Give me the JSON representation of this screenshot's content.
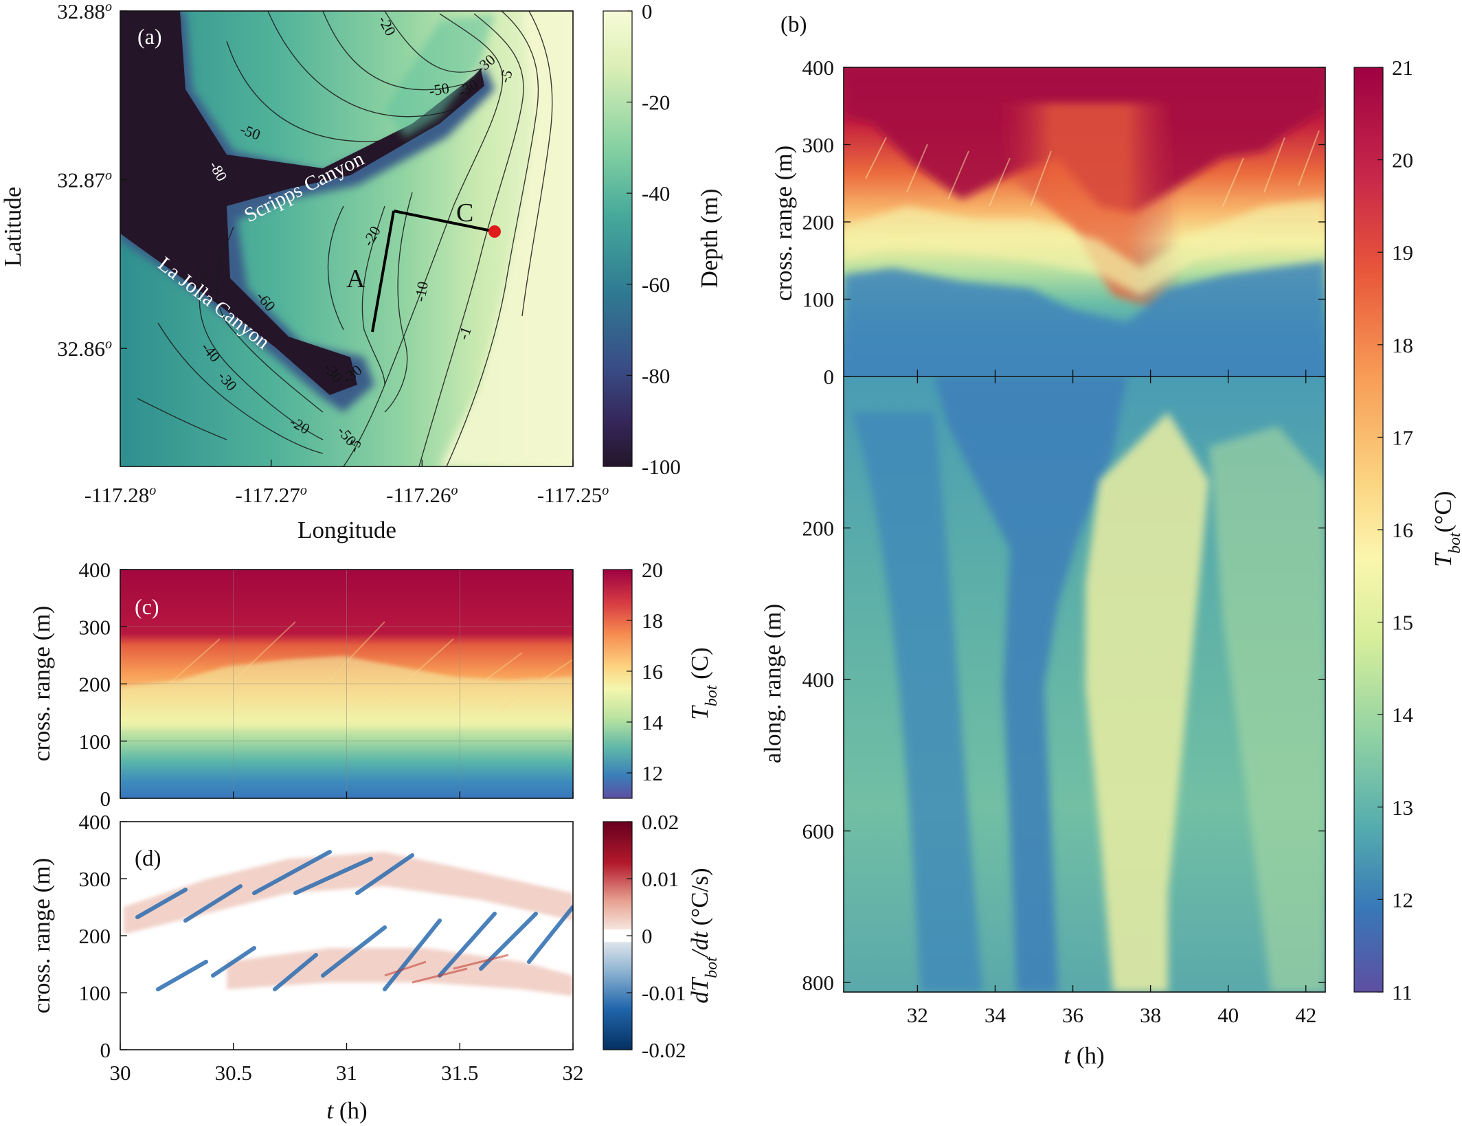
{
  "chart_data": [
    {
      "panel": "(a)",
      "type": "heatmap",
      "subtype": "bathymetry contour map",
      "xlabel": "Longitude",
      "ylabel": "Latitude",
      "xlim": [
        -117.28,
        -117.25
      ],
      "ylim": [
        32.853,
        32.88
      ],
      "x_ticks": [
        "-117.28",
        "-117.27",
        "-117.26",
        "-117.25"
      ],
      "y_ticks": [
        "32.86",
        "32.87",
        "32.88"
      ],
      "tick_superscript": "o",
      "colorbar": {
        "label": "Depth (m)",
        "range": [
          -100,
          0
        ],
        "ticks": [
          "0",
          "-20",
          "-40",
          "-60",
          "-80",
          "-100"
        ]
      },
      "contour_labels": [
        "-20",
        "-50",
        "-30",
        "-5",
        "-30",
        "-80",
        "-50",
        "-20",
        "-10",
        "-1",
        "-60",
        "-40",
        "-30",
        "-30",
        "-30",
        "-20",
        "-50",
        "-5"
      ],
      "annotations": [
        "Scripps Canyon",
        "La Jolla Canyon",
        "A",
        "C"
      ],
      "transects": {
        "A": [
          [
            -117.2623,
            32.8614
          ],
          [
            -117.2615,
            32.8678
          ]
        ],
        "C": [
          [
            -117.2615,
            32.8678
          ],
          [
            -117.2545,
            32.8666
          ]
        ]
      },
      "marker": {
        "color": "#e01b1b",
        "lon": -117.2545,
        "lat": 32.8666
      }
    },
    {
      "panel": "(b)",
      "type": "heatmap",
      "xlabel": "t (h)",
      "x_label_var": "t",
      "x_label_unit": "(h)",
      "ylabel_top": "cross. range (m)",
      "ylabel_bottom": "along. range (m)",
      "xlim": [
        30.1,
        42.5
      ],
      "x_ticks": [
        "32",
        "34",
        "36",
        "38",
        "40",
        "42"
      ],
      "ylim_top": [
        0,
        400
      ],
      "y_ticks_top": [
        "0",
        "100",
        "200",
        "300",
        "400"
      ],
      "ylim_bottom": [
        0,
        800
      ],
      "y_ticks_bottom": [
        "200",
        "400",
        "600",
        "800"
      ],
      "colorbar": {
        "label": "T_bot(°C)",
        "label_main": "T",
        "label_sub": "bot",
        "label_unit": "(°C)",
        "range": [
          11,
          21
        ],
        "ticks": [
          "11",
          "12",
          "13",
          "14",
          "15",
          "16",
          "17",
          "18",
          "19",
          "20",
          "21"
        ]
      }
    },
    {
      "panel": "(c)",
      "type": "heatmap",
      "xlim": [
        30,
        32
      ],
      "ylabel": "cross. range (m)",
      "ylim": [
        0,
        400
      ],
      "y_ticks": [
        "0",
        "100",
        "200",
        "300",
        "400"
      ],
      "colorbar": {
        "label": "T_bot (C)",
        "label_main": "T",
        "label_sub": "bot",
        "label_unit": "(C)",
        "range": [
          11,
          20
        ],
        "ticks": [
          "12",
          "14",
          "16",
          "18",
          "20"
        ]
      }
    },
    {
      "panel": "(d)",
      "type": "heatmap",
      "xlabel": "t (h)",
      "x_label_var": "t",
      "x_label_unit": "(h)",
      "xlim": [
        30,
        32
      ],
      "x_ticks": [
        "30",
        "30.5",
        "31",
        "31.5",
        "32"
      ],
      "ylabel": "cross. range (m)",
      "ylim": [
        0,
        400
      ],
      "y_ticks": [
        "0",
        "100",
        "200",
        "300",
        "400"
      ],
      "colorbar": {
        "label": "dT_bot/dt (°C/s)",
        "label_main": "dT",
        "label_sub": "bot",
        "label_tail": "/dt",
        "label_unit": "(°C/s)",
        "range": [
          -0.02,
          0.02
        ],
        "ticks": [
          "0.02",
          "0.01",
          "0",
          "-0.01",
          "-0.02"
        ]
      }
    }
  ],
  "colors": {
    "deep": "#2a1a33",
    "mid": "#3f9d91",
    "shallow": "#f4f8c8",
    "warm": "#a50f42",
    "cool": "#3f7bbf",
    "accent_red": "#e01b1b"
  }
}
